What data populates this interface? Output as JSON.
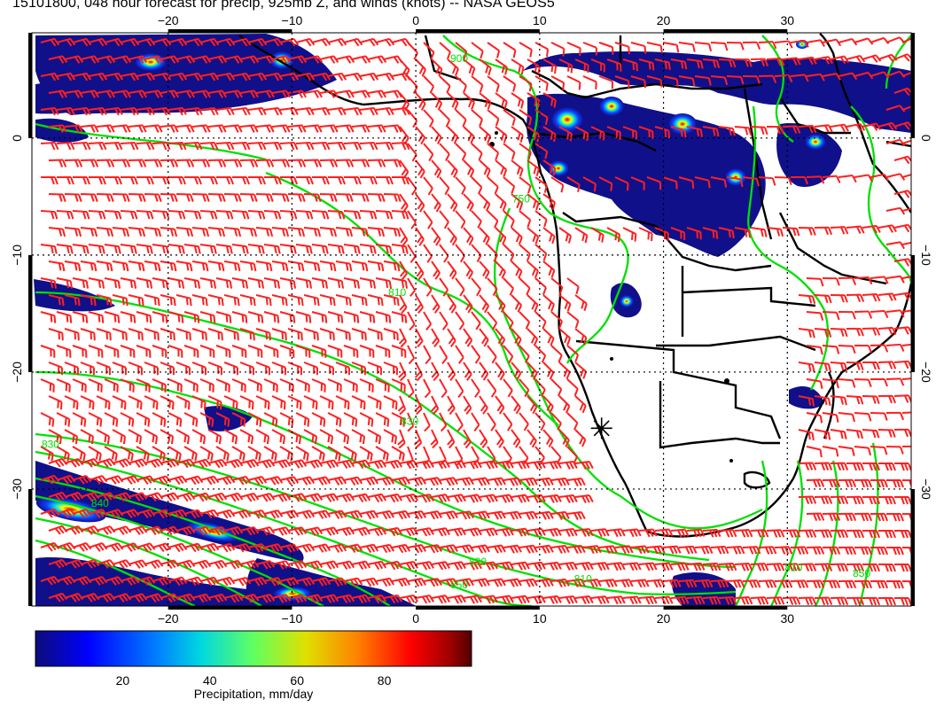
{
  "title": "15101800, 048 hour forecast for precip, 925mb Z, and winds (knots) -- NASA GEOS5",
  "map": {
    "lon_range": [
      -31,
      40
    ],
    "lat_range": [
      -40,
      9
    ],
    "lon_ticks": [
      -20,
      -10,
      0,
      10,
      20,
      30
    ],
    "lon_tick_labels": [
      "−20",
      "−10",
      "0",
      "10",
      "20",
      "30"
    ],
    "lat_ticks": [
      0,
      -10,
      -20,
      -30
    ],
    "lat_tick_labels": [
      "0",
      "−10",
      "−20",
      "−30"
    ],
    "gridlines": "dotted",
    "colors": {
      "land_outline": "#000000",
      "contour": "#00e000",
      "wind_barb": "#ff1f1f",
      "background": "#ffffff"
    },
    "contour_labels": [
      {
        "text": "900",
        "lon": 3.5,
        "lat": 6.5
      },
      {
        "text": "750",
        "lon": 8.5,
        "lat": -5.5
      },
      {
        "text": "810",
        "lon": -1.5,
        "lat": -13.5
      },
      {
        "text": "830",
        "lon": -0.5,
        "lat": -24.5
      },
      {
        "text": "830",
        "lon": -29.5,
        "lat": -26.5
      },
      {
        "text": "840",
        "lon": -25.5,
        "lat": -31.5
      },
      {
        "text": "830",
        "lon": 5,
        "lat": -36.5
      },
      {
        "text": "810",
        "lon": 13.5,
        "lat": -38
      },
      {
        "text": "810",
        "lon": 30.5,
        "lat": -37
      },
      {
        "text": "850",
        "lon": 36,
        "lat": -37.5
      },
      {
        "text": "850",
        "lon": 3.5,
        "lat": -38.5
      }
    ],
    "marker": {
      "symbol": "star-icon",
      "lon": 15,
      "lat": -24.8
    }
  },
  "colorbar": {
    "ticks": [
      20,
      40,
      60,
      80
    ],
    "range": [
      0,
      100
    ],
    "label": "Precipitation, mm/day",
    "colors": [
      "#0c0c7a",
      "#0000ff",
      "#0080ff",
      "#00e0e0",
      "#60ff60",
      "#e0e000",
      "#ff8000",
      "#ff0000",
      "#a00000",
      "#500000"
    ]
  }
}
